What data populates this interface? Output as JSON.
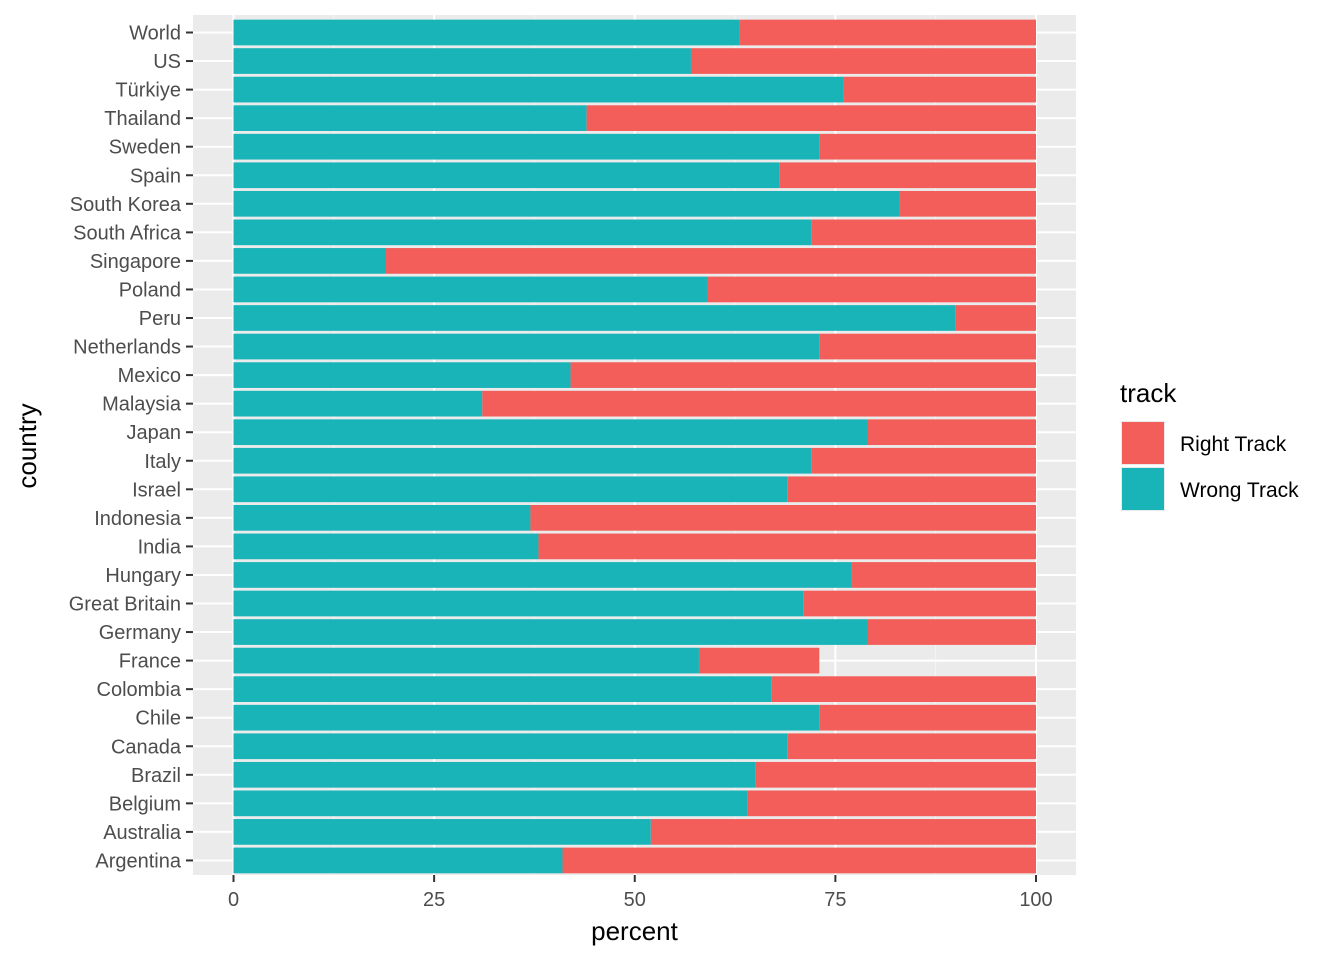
{
  "chart_data": {
    "type": "bar",
    "orientation": "horizontal",
    "stacked": true,
    "xlabel": "percent",
    "ylabel": "country",
    "xlim": [
      0,
      100
    ],
    "x_ticks": [
      "0",
      "25",
      "50",
      "75",
      "100"
    ],
    "grid": true,
    "legend": {
      "title": "track",
      "placement": "right",
      "entries": [
        "Right Track",
        "Wrong Track"
      ]
    },
    "categories": [
      "World",
      "US",
      "Türkiye",
      "Thailand",
      "Sweden",
      "Spain",
      "South Korea",
      "South Africa",
      "Singapore",
      "Poland",
      "Peru",
      "Netherlands",
      "Mexico",
      "Malaysia",
      "Japan",
      "Italy",
      "Israel",
      "Indonesia",
      "India",
      "Hungary",
      "Great Britain",
      "Germany",
      "France",
      "Colombia",
      "Chile",
      "Canada",
      "Brazil",
      "Belgium",
      "Australia",
      "Argentina"
    ],
    "series": [
      {
        "name": "Wrong Track",
        "color": "#19b4b8",
        "values": [
          63,
          57,
          76,
          44,
          73,
          68,
          83,
          72,
          19,
          59,
          90,
          73,
          42,
          31,
          79,
          72,
          69,
          37,
          38,
          77,
          71,
          79,
          58,
          67,
          73,
          69,
          65,
          64,
          52,
          41
        ]
      },
      {
        "name": "Right Track",
        "color": "#f35e5a",
        "values": [
          37,
          43,
          24,
          56,
          27,
          32,
          17,
          28,
          81,
          41,
          10,
          27,
          58,
          69,
          21,
          28,
          31,
          63,
          62,
          23,
          29,
          21,
          15,
          33,
          27,
          31,
          35,
          36,
          48,
          59
        ]
      }
    ]
  }
}
